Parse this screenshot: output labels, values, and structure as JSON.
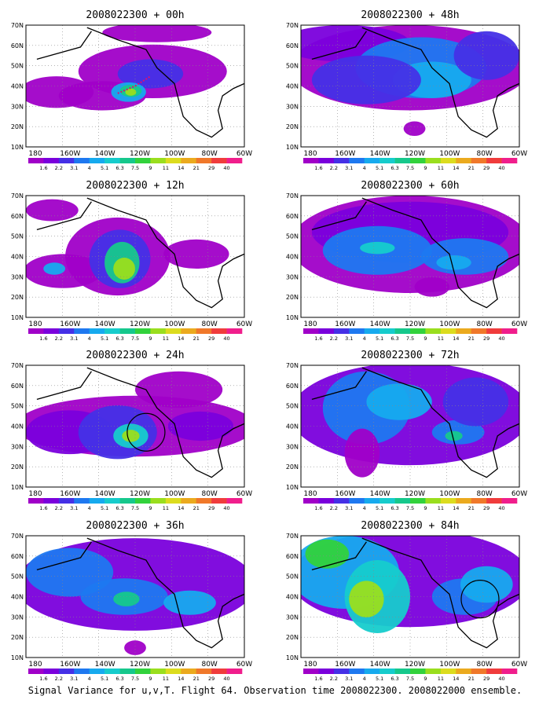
{
  "figure": {
    "caption": "Signal Variance for u,v,T. Flight 64. Observation time 2008022300. 2008022000 ensemble."
  },
  "colorbar": {
    "labels": [
      "1.6",
      "2.2",
      "3.1",
      "4",
      "5.1",
      "6.3",
      "7.5",
      "9",
      "11",
      "14",
      "21",
      "29",
      "40"
    ],
    "colors": [
      "#a000c8",
      "#7a00dc",
      "#4530e6",
      "#1e78f0",
      "#16aaee",
      "#16cccc",
      "#16c88c",
      "#32d23c",
      "#9ade1e",
      "#dcdc1e",
      "#ebaa1e",
      "#f0782a",
      "#f03c3c",
      "#f01e8c"
    ]
  },
  "map_axes": {
    "x_labels": [
      "180",
      "160W",
      "140W",
      "120W",
      "100W",
      "80W",
      "60W"
    ],
    "y_labels": [
      "10N",
      "20N",
      "30N",
      "40N",
      "50N",
      "60N",
      "70N"
    ],
    "grid": "dotted"
  },
  "panels": [
    {
      "title": "2008022300 + 00h"
    },
    {
      "title": "2008022300 + 48h"
    },
    {
      "title": "2008022300 + 12h"
    },
    {
      "title": "2008022300 + 60h"
    },
    {
      "title": "2008022300 + 24h"
    },
    {
      "title": "2008022300 + 72h"
    },
    {
      "title": "2008022300 + 36h"
    },
    {
      "title": "2008022300 + 84h"
    }
  ]
}
